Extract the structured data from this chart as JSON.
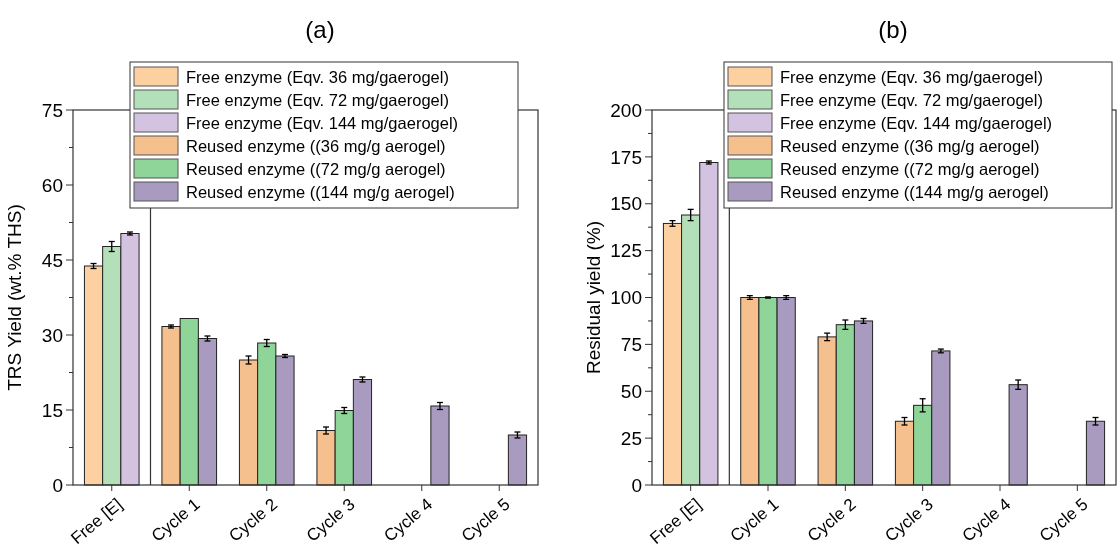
{
  "chart_data": [
    {
      "type": "bar",
      "title": "(a)",
      "ylabel": "TRS Yield (wt.% THS)",
      "categories": [
        "Free [E]",
        "Cycle 1",
        "Cycle 2",
        "Cycle 3",
        "Cycle 4",
        "Cycle 5"
      ],
      "series": [
        {
          "name": "Free enzyme (Eqv. 36 mg/gaerogel)",
          "color": "#fdd0a2",
          "values": [
            43.8,
            null,
            null,
            null,
            null,
            null
          ],
          "errors": [
            0.5,
            null,
            null,
            null,
            null,
            null
          ]
        },
        {
          "name": "Free enzyme (Eqv. 72 mg/gaerogel)",
          "color": "#b3e0b8",
          "values": [
            47.7,
            null,
            null,
            null,
            null,
            null
          ],
          "errors": [
            1,
            null,
            null,
            null,
            null,
            null
          ]
        },
        {
          "name": "Free enzyme (Eqv. 144 mg/gaerogel)",
          "color": "#d3c3e0",
          "values": [
            50.3,
            null,
            null,
            null,
            null,
            null
          ],
          "errors": [
            0.3,
            null,
            null,
            null,
            null,
            null
          ]
        },
        {
          "name": "Reused enzyme ((36 mg/g aerogel)",
          "color": "#f5c08e",
          "values": [
            null,
            31.7,
            25,
            10.9,
            null,
            null
          ],
          "errors": [
            null,
            0.3,
            0.8,
            0.7,
            null,
            null
          ]
        },
        {
          "name": "Reused enzyme ((72 mg/g aerogel)",
          "color": "#8fd498",
          "values": [
            null,
            33.3,
            28.4,
            14.9,
            null,
            null
          ],
          "errors": [
            null,
            null,
            0.7,
            0.6,
            null,
            null
          ]
        },
        {
          "name": "Reused enzyme ((144 mg/g aerogel)",
          "color": "#a99bbf",
          "values": [
            null,
            29.3,
            25.8,
            21.1,
            15.8,
            10
          ],
          "errors": [
            null,
            0.5,
            0.3,
            0.5,
            0.7,
            0.6
          ]
        }
      ],
      "ylim": [
        0,
        75
      ],
      "yticks": [
        0,
        {
          "value": 7.5,
          "label": null
        },
        15,
        {
          "value": 22.5,
          "label": null
        },
        30,
        {
          "value": 37.5,
          "label": null
        },
        45,
        {
          "value": 52.5,
          "label": null
        },
        60,
        {
          "value": 67.5,
          "label": null
        },
        75
      ],
      "legend": "top right",
      "grid": false
    },
    {
      "type": "bar",
      "title": "(b)",
      "ylabel": "Residual yield (%)",
      "categories": [
        "Free [E]",
        "Cycle 1",
        "Cycle 2",
        "Cycle 3",
        "Cycle 4",
        "Cycle 5"
      ],
      "series": [
        {
          "name": "Free enzyme (Eqv. 36 mg/gaerogel)",
          "color": "#fdd0a2",
          "values": [
            139.5,
            null,
            null,
            null,
            null,
            null
          ],
          "errors": [
            1.5,
            null,
            null,
            null,
            null,
            null
          ]
        },
        {
          "name": "Free enzyme (Eqv. 72 mg/gaerogel)",
          "color": "#b3e0b8",
          "values": [
            144,
            null,
            null,
            null,
            null,
            null
          ],
          "errors": [
            3,
            null,
            null,
            null,
            null,
            null
          ]
        },
        {
          "name": "Free enzyme (Eqv. 144 mg/gaerogel)",
          "color": "#d3c3e0",
          "values": [
            172,
            null,
            null,
            null,
            null,
            null
          ],
          "errors": [
            0.8,
            null,
            null,
            null,
            null,
            null
          ]
        },
        {
          "name": "Reused enzyme ((36 mg/g aerogel)",
          "color": "#f5c08e",
          "values": [
            null,
            100,
            79,
            34,
            null,
            null
          ],
          "errors": [
            null,
            1,
            2,
            2,
            null,
            null
          ]
        },
        {
          "name": "Reused enzyme ((72 mg/g aerogel)",
          "color": "#8fd498",
          "values": [
            null,
            100,
            85.5,
            42.5,
            null,
            null
          ],
          "errors": [
            null,
            0.3,
            2.5,
            3.5,
            null,
            null
          ]
        },
        {
          "name": "Reused enzyme ((144 mg/g aerogel)",
          "color": "#a99bbf",
          "values": [
            null,
            100,
            87.5,
            71.5,
            53.5,
            34
          ],
          "errors": [
            null,
            1,
            1.3,
            1,
            2.5,
            2
          ]
        }
      ],
      "ylim": [
        0,
        200
      ],
      "yticks": [
        0,
        {
          "value": 12.5,
          "label": null
        },
        25,
        {
          "value": 37.5,
          "label": null
        },
        50,
        {
          "value": 62.5,
          "label": null
        },
        75,
        {
          "value": 87.5,
          "label": null
        },
        100,
        {
          "value": 112.5,
          "label": null
        },
        125,
        {
          "value": 137.5,
          "label": null
        },
        150,
        {
          "value": 162.5,
          "label": null
        },
        175,
        {
          "value": 187.5,
          "label": null
        },
        200
      ],
      "legend": "top right",
      "grid": false
    }
  ]
}
